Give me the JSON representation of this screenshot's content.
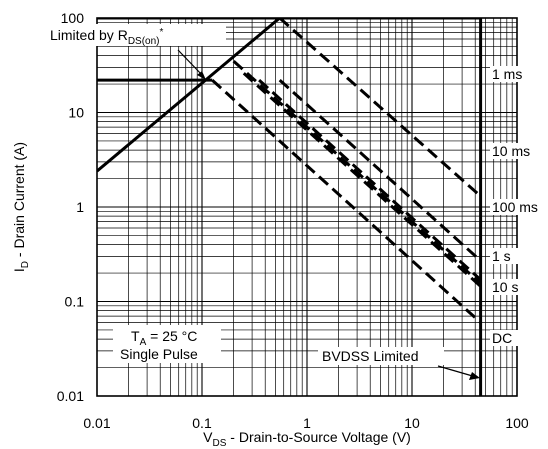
{
  "chart_data": {
    "type": "line",
    "title": "",
    "xlabel": {
      "main": "V",
      "sub": "DS",
      "rest": " - Drain-to-Source Voltage (V)"
    },
    "ylabel": {
      "main": "I",
      "sub": "D",
      "rest": " - Drain Current (A)"
    },
    "x_scale": "log",
    "y_scale": "log",
    "xlim": [
      0.01,
      100
    ],
    "ylim": [
      0.01,
      100
    ],
    "grid": true,
    "x_ticks": [
      "0.01",
      "0.1",
      "1",
      "10",
      "100"
    ],
    "y_ticks": [
      "0.01",
      "0.1",
      "1",
      "10",
      "100"
    ],
    "series": [
      {
        "style": "solid",
        "points": [
          [
            0.01,
            2.4
          ],
          [
            0.55,
            100
          ]
        ]
      },
      {
        "style": "solid",
        "points": [
          [
            0.01,
            22
          ],
          [
            0.125,
            22
          ]
        ]
      },
      {
        "style": "solid",
        "points": [
          [
            0.01,
            100
          ],
          [
            45,
            100
          ]
        ]
      },
      {
        "style": "solid",
        "points": [
          [
            45,
            0.01
          ],
          [
            45,
            100
          ]
        ]
      },
      {
        "style": "dashed",
        "points": [
          [
            0.55,
            100
          ],
          [
            45,
            1.3
          ]
        ]
      },
      {
        "style": "dashed",
        "points": [
          [
            0.125,
            22
          ],
          [
            45,
            0.06
          ]
        ]
      },
      {
        "style": "dashed",
        "points": [
          [
            0.2,
            35
          ],
          [
            45,
            0.155
          ]
        ]
      },
      {
        "style": "dashed",
        "points": [
          [
            0.25,
            26
          ],
          [
            45,
            0.145
          ]
        ]
      },
      {
        "style": "dashed",
        "points": [
          [
            0.35,
            22
          ],
          [
            45,
            0.17
          ]
        ]
      },
      {
        "style": "dashed",
        "points": [
          [
            0.55,
            22
          ],
          [
            45,
            0.27
          ]
        ]
      }
    ],
    "annotations": {
      "limited_by": {
        "main": "Limited by R",
        "sub": "DS(on)",
        "sup": "*"
      },
      "curve_labels": [
        "1 ms",
        "10 ms",
        "100 ms",
        "1 s",
        "10 s",
        "DC"
      ],
      "conditions_temp": {
        "main": "T",
        "sub": "A",
        "rest": " = 25 °C"
      },
      "conditions_pulse": "Single Pulse",
      "bvdss": "BVDSS Limited"
    }
  }
}
